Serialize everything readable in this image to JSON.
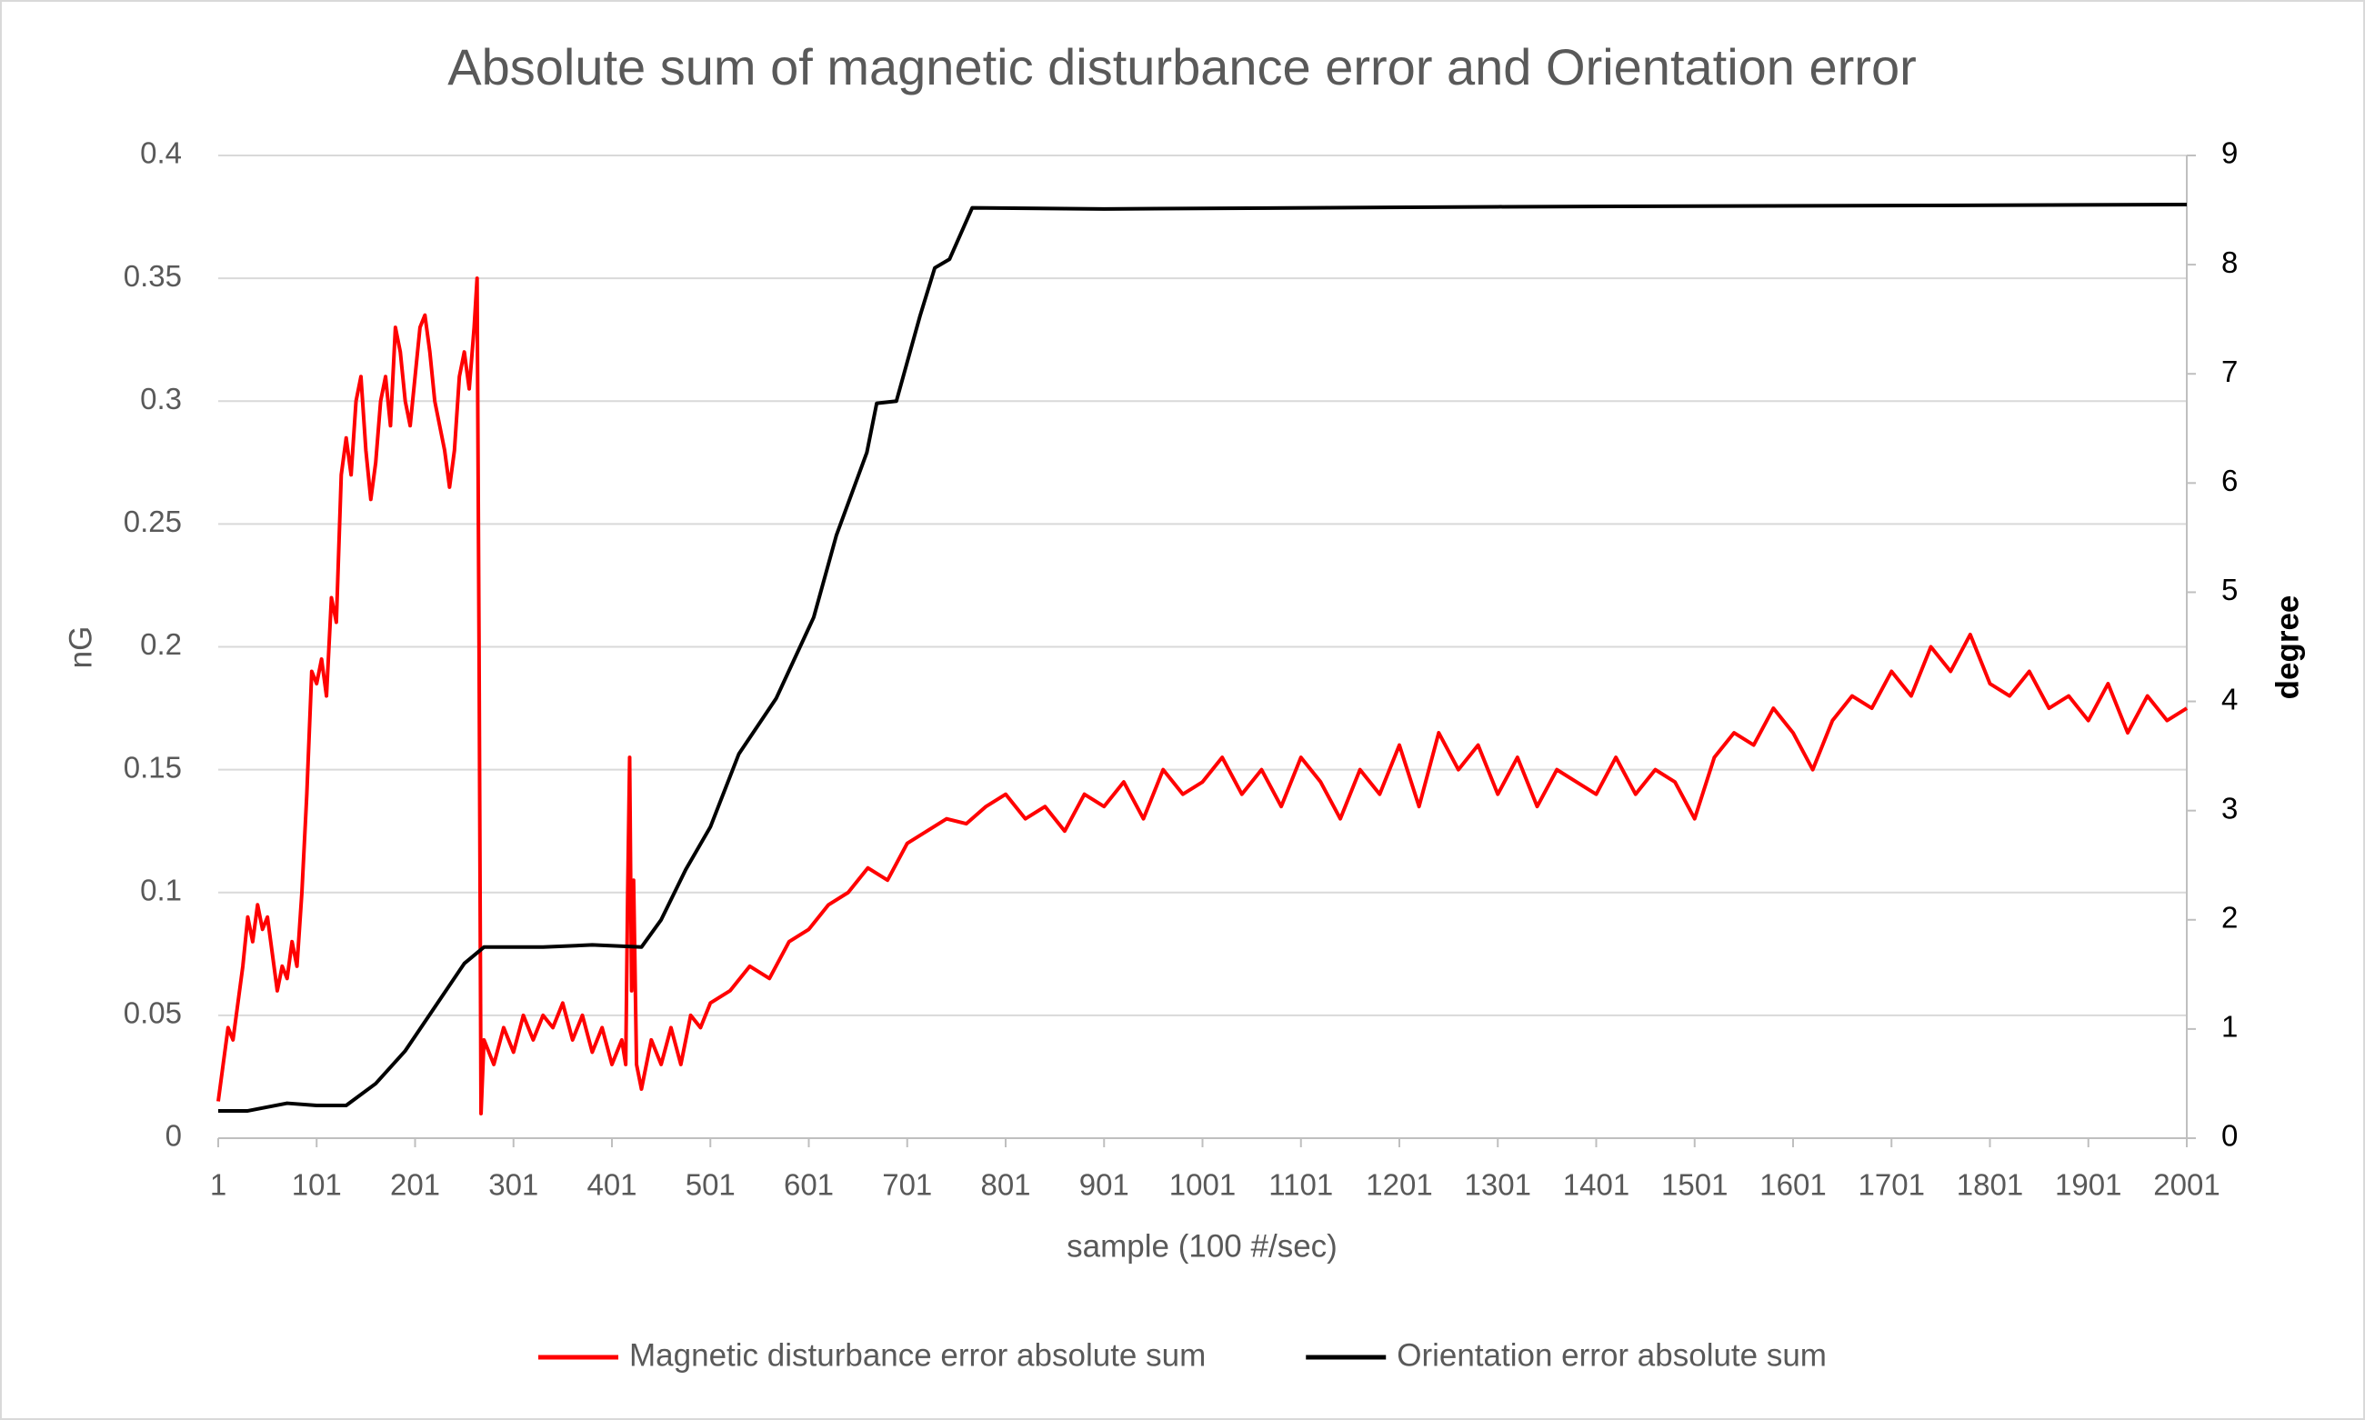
{
  "chart_data": {
    "type": "line",
    "title": "Absolute sum of magnetic disturbance error and Orientation error",
    "x_label": "sample (100 #/sec)",
    "y_label": "nG",
    "y2_label": "degree",
    "xlim": [
      1,
      2001
    ],
    "xticks": [
      1,
      101,
      201,
      301,
      401,
      501,
      601,
      701,
      801,
      901,
      1001,
      1101,
      1201,
      1301,
      1401,
      1501,
      1601,
      1701,
      1801,
      1901,
      2001
    ],
    "ylim": [
      0,
      0.4
    ],
    "yticks": [
      0,
      0.05,
      0.1,
      0.15,
      0.2,
      0.25,
      0.3,
      0.35,
      0.4
    ],
    "y2lim": [
      0,
      9
    ],
    "y2ticks": [
      0,
      1,
      2,
      3,
      4,
      5,
      6,
      7,
      8,
      9
    ],
    "grid": true,
    "legend": "bottom",
    "series": [
      {
        "name": "Magnetic disturbance error absolute sum",
        "color": "#ff0000",
        "x": [
          1,
          6,
          11,
          16,
          21,
          26,
          31,
          36,
          41,
          46,
          51,
          56,
          61,
          66,
          71,
          76,
          81,
          86,
          91,
          96,
          101,
          106,
          111,
          116,
          121,
          126,
          131,
          136,
          141,
          146,
          151,
          156,
          161,
          166,
          171,
          176,
          181,
          186,
          191,
          196,
          201,
          206,
          211,
          216,
          221,
          226,
          231,
          236,
          241,
          246,
          251,
          256,
          261,
          264,
          266,
          268,
          271,
          281,
          291,
          301,
          311,
          321,
          331,
          341,
          351,
          361,
          371,
          381,
          391,
          401,
          411,
          415,
          417,
          419,
          421,
          423,
          426,
          431,
          441,
          451,
          461,
          471,
          481,
          491,
          501,
          521,
          541,
          561,
          581,
          601,
          621,
          641,
          661,
          681,
          701,
          721,
          741,
          761,
          781,
          801,
          821,
          841,
          861,
          881,
          901,
          921,
          941,
          961,
          981,
          1001,
          1021,
          1041,
          1061,
          1081,
          1101,
          1121,
          1141,
          1161,
          1181,
          1201,
          1221,
          1241,
          1261,
          1281,
          1301,
          1321,
          1341,
          1361,
          1381,
          1401,
          1421,
          1441,
          1461,
          1481,
          1501,
          1521,
          1541,
          1561,
          1581,
          1601,
          1621,
          1641,
          1661,
          1681,
          1701,
          1721,
          1741,
          1761,
          1781,
          1801,
          1821,
          1841,
          1861,
          1881,
          1901,
          1921,
          1941,
          1961,
          1981,
          2001
        ],
        "values": [
          0.015,
          0.03,
          0.045,
          0.04,
          0.055,
          0.07,
          0.09,
          0.08,
          0.095,
          0.085,
          0.09,
          0.075,
          0.06,
          0.07,
          0.065,
          0.08,
          0.07,
          0.1,
          0.14,
          0.19,
          0.185,
          0.195,
          0.18,
          0.22,
          0.21,
          0.27,
          0.285,
          0.27,
          0.3,
          0.31,
          0.28,
          0.26,
          0.275,
          0.3,
          0.31,
          0.29,
          0.33,
          0.32,
          0.3,
          0.29,
          0.31,
          0.33,
          0.335,
          0.32,
          0.3,
          0.29,
          0.28,
          0.265,
          0.28,
          0.31,
          0.32,
          0.305,
          0.33,
          0.35,
          0.2,
          0.01,
          0.04,
          0.03,
          0.045,
          0.035,
          0.05,
          0.04,
          0.05,
          0.045,
          0.055,
          0.04,
          0.05,
          0.035,
          0.045,
          0.03,
          0.04,
          0.03,
          0.1,
          0.155,
          0.06,
          0.105,
          0.03,
          0.02,
          0.04,
          0.03,
          0.045,
          0.03,
          0.05,
          0.045,
          0.055,
          0.06,
          0.07,
          0.065,
          0.08,
          0.085,
          0.095,
          0.1,
          0.11,
          0.105,
          0.12,
          0.125,
          0.13,
          0.128,
          0.135,
          0.14,
          0.13,
          0.135,
          0.125,
          0.14,
          0.135,
          0.145,
          0.13,
          0.15,
          0.14,
          0.145,
          0.155,
          0.14,
          0.15,
          0.135,
          0.155,
          0.145,
          0.13,
          0.15,
          0.14,
          0.16,
          0.135,
          0.165,
          0.15,
          0.16,
          0.14,
          0.155,
          0.135,
          0.15,
          0.145,
          0.14,
          0.155,
          0.14,
          0.15,
          0.145,
          0.13,
          0.155,
          0.165,
          0.16,
          0.175,
          0.165,
          0.15,
          0.17,
          0.18,
          0.175,
          0.19,
          0.18,
          0.2,
          0.19,
          0.205,
          0.185,
          0.18,
          0.19,
          0.175,
          0.18,
          0.17,
          0.185,
          0.165,
          0.18,
          0.17,
          0.175
        ]
      },
      {
        "name": "Orientation error absolute sum",
        "color": "#000000",
        "axis": "y2",
        "x": [
          1,
          31,
          71,
          101,
          131,
          161,
          191,
          221,
          251,
          271,
          331,
          381,
          431,
          451,
          476,
          501,
          530,
          568,
          606,
          629,
          660,
          670,
          690,
          714,
          729,
          744,
          767,
          901,
          1301,
          2001
        ],
        "values": [
          0.25,
          0.25,
          0.32,
          0.3,
          0.3,
          0.5,
          0.8,
          1.2,
          1.6,
          1.75,
          1.75,
          1.77,
          1.75,
          2.0,
          2.46,
          2.85,
          3.52,
          4.03,
          4.77,
          5.52,
          6.28,
          6.73,
          6.75,
          7.53,
          7.97,
          8.05,
          8.52,
          8.51,
          8.53,
          8.55
        ]
      }
    ]
  }
}
